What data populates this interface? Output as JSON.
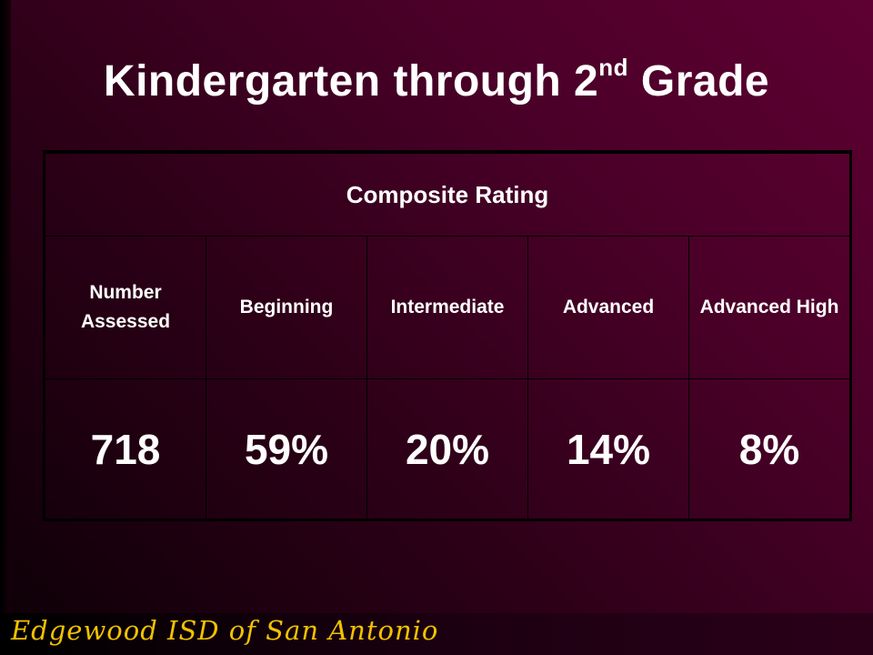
{
  "slide": {
    "title_main": "Kindergarten through 2",
    "title_sup": "nd",
    "title_end": " Grade"
  },
  "table": {
    "header": "Composite Rating",
    "columns": [
      "Number Assessed",
      "Beginning",
      "Intermediate",
      "Advanced",
      "Advanced High"
    ],
    "values": [
      "718",
      "59%",
      "20%",
      "14%",
      "8%"
    ]
  },
  "footer": {
    "text": "Edgewood ISD of San Antonio",
    "color": "#f2c200"
  }
}
